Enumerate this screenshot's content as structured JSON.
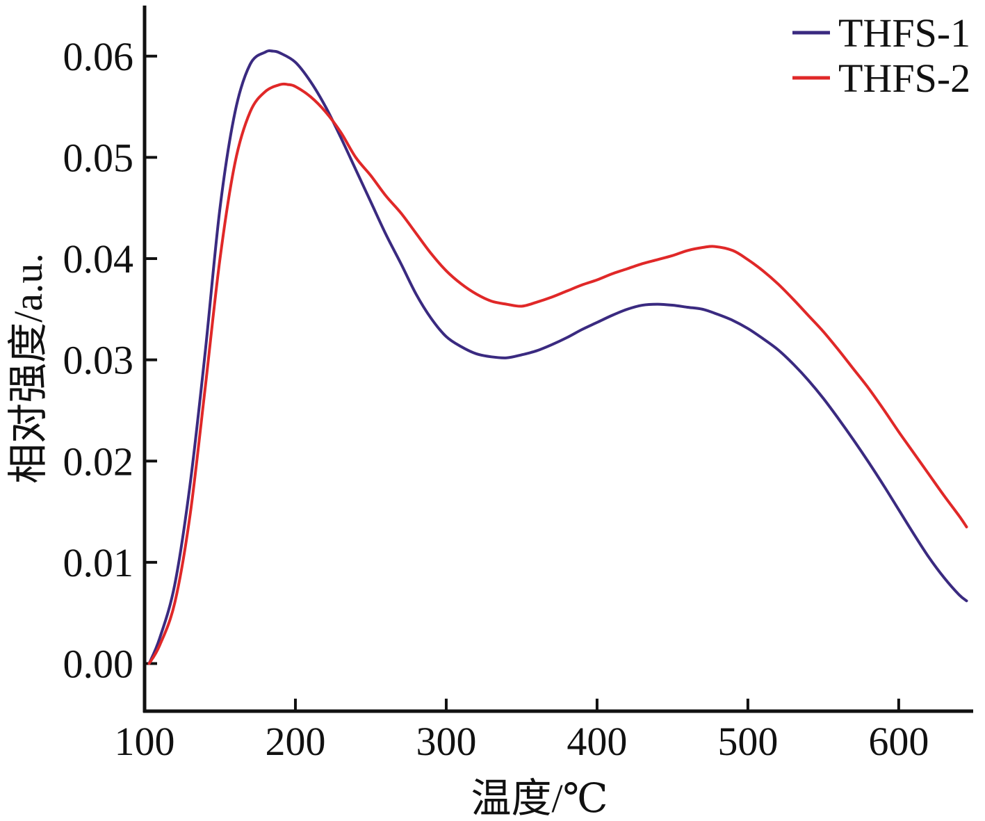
{
  "chart_data": {
    "type": "line",
    "xlabel": "温度/℃",
    "ylabel": "相对强度/a.u.",
    "xlim": [
      100,
      648
    ],
    "ylim": [
      -0.0047,
      0.065
    ],
    "x_ticks": [
      {
        "value": 100,
        "label": "100"
      },
      {
        "value": 200,
        "label": "200"
      },
      {
        "value": 300,
        "label": "300"
      },
      {
        "value": 400,
        "label": "400"
      },
      {
        "value": 500,
        "label": "500"
      },
      {
        "value": 600,
        "label": "600"
      }
    ],
    "y_ticks": [
      {
        "value": 0.0,
        "label": "0.00"
      },
      {
        "value": 0.01,
        "label": "0.01"
      },
      {
        "value": 0.02,
        "label": "0.02"
      },
      {
        "value": 0.03,
        "label": "0.03"
      },
      {
        "value": 0.04,
        "label": "0.04"
      },
      {
        "value": 0.05,
        "label": "0.05"
      },
      {
        "value": 0.06,
        "label": "0.06"
      }
    ],
    "grid": false,
    "legend_position": "top-right",
    "series": [
      {
        "name": "THFS-1",
        "color": "#3a2a80",
        "x": [
          103,
          110,
          120,
          130,
          140,
          150,
          160,
          170,
          180,
          185,
          190,
          200,
          210,
          220,
          230,
          240,
          250,
          260,
          270,
          280,
          290,
          300,
          310,
          320,
          330,
          340,
          350,
          360,
          370,
          380,
          390,
          400,
          410,
          420,
          430,
          440,
          450,
          460,
          470,
          480,
          490,
          500,
          510,
          520,
          530,
          540,
          550,
          560,
          570,
          580,
          590,
          600,
          610,
          620,
          630,
          640,
          645
        ],
        "values": [
          0.0,
          0.0025,
          0.0078,
          0.0175,
          0.0305,
          0.045,
          0.0545,
          0.0592,
          0.0604,
          0.0605,
          0.0603,
          0.0594,
          0.0575,
          0.055,
          0.052,
          0.0488,
          0.0456,
          0.0424,
          0.0395,
          0.0365,
          0.0341,
          0.0323,
          0.0313,
          0.0306,
          0.0303,
          0.0302,
          0.0305,
          0.0309,
          0.0315,
          0.0322,
          0.033,
          0.0337,
          0.0344,
          0.035,
          0.0354,
          0.0355,
          0.0354,
          0.0352,
          0.035,
          0.0345,
          0.0339,
          0.0331,
          0.0321,
          0.031,
          0.0296,
          0.028,
          0.0262,
          0.0242,
          0.0221,
          0.0199,
          0.0176,
          0.0152,
          0.0128,
          0.0105,
          0.0085,
          0.0068,
          0.0062
        ]
      },
      {
        "name": "THFS-2",
        "color": "#e02828",
        "x": [
          103,
          110,
          120,
          130,
          140,
          150,
          160,
          170,
          180,
          190,
          195,
          200,
          210,
          220,
          230,
          240,
          250,
          260,
          270,
          280,
          290,
          300,
          310,
          320,
          330,
          340,
          350,
          360,
          370,
          380,
          390,
          400,
          410,
          420,
          430,
          440,
          450,
          460,
          470,
          478,
          490,
          500,
          510,
          520,
          530,
          540,
          550,
          560,
          570,
          580,
          590,
          600,
          610,
          620,
          630,
          640,
          645
        ],
        "values": [
          0.0,
          0.0018,
          0.006,
          0.0145,
          0.027,
          0.04,
          0.0495,
          0.0545,
          0.0565,
          0.0572,
          0.0572,
          0.057,
          0.056,
          0.0545,
          0.0525,
          0.05,
          0.0482,
          0.0462,
          0.0445,
          0.0425,
          0.0405,
          0.0388,
          0.0375,
          0.0365,
          0.0358,
          0.0355,
          0.0353,
          0.0357,
          0.0362,
          0.0368,
          0.0374,
          0.0379,
          0.0385,
          0.039,
          0.0395,
          0.0399,
          0.0403,
          0.0408,
          0.0411,
          0.0412,
          0.0408,
          0.0399,
          0.0388,
          0.0375,
          0.036,
          0.0344,
          0.0328,
          0.031,
          0.0291,
          0.0272,
          0.0251,
          0.0229,
          0.0208,
          0.0187,
          0.0166,
          0.0146,
          0.0135
        ]
      }
    ]
  }
}
